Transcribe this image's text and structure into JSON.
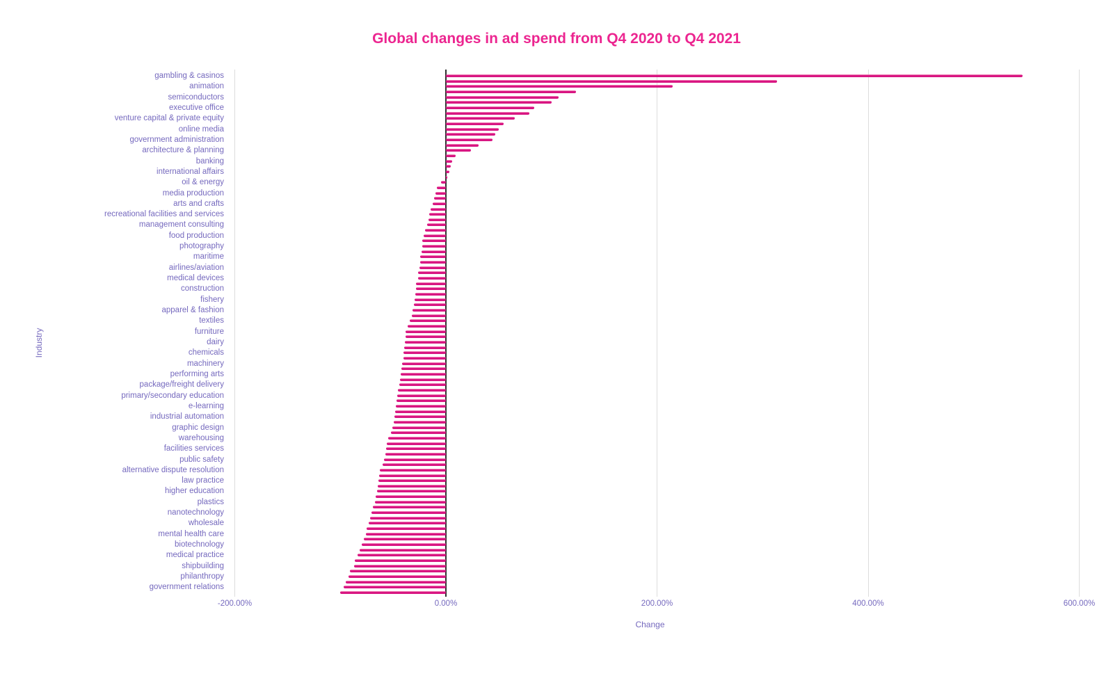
{
  "title": "Global changes in ad spend from Q4 2020 to Q4 2021",
  "colors": {
    "title": "#ec2590",
    "bar": "#d81682",
    "bar_highlight": "#f07ab2",
    "axis_text": "#7569be",
    "gridline": "#dcdcdc",
    "zero_line": "#2f2f2f"
  },
  "chart_data": {
    "type": "bar",
    "orientation": "horizontal",
    "title": "Global changes in ad spend from Q4 2020 to Q4 2021",
    "xlabel": "Change",
    "ylabel": "Industry",
    "xlim": [
      -200,
      632
    ],
    "grid": "vertical",
    "x_ticks": [
      {
        "label": "-200.00%",
        "value": -200
      },
      {
        "label": "0.00%",
        "value": 0
      },
      {
        "label": "200.00%",
        "value": 200
      },
      {
        "label": "400.00%",
        "value": 400
      },
      {
        "label": "600.00%",
        "value": 600
      }
    ],
    "note": "98 bars; every second category label is shown on the y axis; unlabeled bars have label ''",
    "bars": [
      {
        "label": "gambling & casinos",
        "value": 546
      },
      {
        "label": "",
        "value": 314
      },
      {
        "label": "animation",
        "value": 215
      },
      {
        "label": "",
        "value": 123
      },
      {
        "label": "semiconductors",
        "value": 107
      },
      {
        "label": "",
        "value": 100
      },
      {
        "label": "executive office",
        "value": 84
      },
      {
        "label": "",
        "value": 79
      },
      {
        "label": "venture capital & private equity",
        "value": 65
      },
      {
        "label": "",
        "value": 55
      },
      {
        "label": "online media",
        "value": 50
      },
      {
        "label": "",
        "value": 47
      },
      {
        "label": "government administration",
        "value": 44
      },
      {
        "label": "",
        "value": 31
      },
      {
        "label": "architecture & planning",
        "value": 24
      },
      {
        "label": "",
        "value": 9
      },
      {
        "label": "banking",
        "value": 6
      },
      {
        "label": "",
        "value": 4.5
      },
      {
        "label": "international affairs",
        "value": 3.3
      },
      {
        "label": "",
        "value": 1.5
      },
      {
        "label": "oil & energy",
        "value": -4.6
      },
      {
        "label": "",
        "value": -8.4
      },
      {
        "label": "media production",
        "value": -10
      },
      {
        "label": "",
        "value": -11.2
      },
      {
        "label": "arts and crafts",
        "value": -12.7
      },
      {
        "label": "",
        "value": -14.3
      },
      {
        "label": "recreational facilities and services",
        "value": -15.6
      },
      {
        "label": "",
        "value": -16.5
      },
      {
        "label": "management consulting",
        "value": -17.8
      },
      {
        "label": "",
        "value": -20
      },
      {
        "label": "food production",
        "value": -21
      },
      {
        "label": "",
        "value": -22.2
      },
      {
        "label": "photography",
        "value": -22.6
      },
      {
        "label": "",
        "value": -23.1
      },
      {
        "label": "maritime",
        "value": -24.2
      },
      {
        "label": "",
        "value": -24.6
      },
      {
        "label": "airlines/aviation",
        "value": -25.3
      },
      {
        "label": "",
        "value": -26.2
      },
      {
        "label": "medical devices",
        "value": -26.6
      },
      {
        "label": "",
        "value": -28.2
      },
      {
        "label": "construction",
        "value": -28.6
      },
      {
        "label": "",
        "value": -29
      },
      {
        "label": "fishery",
        "value": -29.7
      },
      {
        "label": "",
        "value": -30.6
      },
      {
        "label": "apparel & fashion",
        "value": -31.5
      },
      {
        "label": "",
        "value": -32.1
      },
      {
        "label": "textiles",
        "value": -34.3
      },
      {
        "label": "",
        "value": -36
      },
      {
        "label": "furniture",
        "value": -38
      },
      {
        "label": "",
        "value": -38.3
      },
      {
        "label": "dairy",
        "value": -38.7
      },
      {
        "label": "",
        "value": -39.4
      },
      {
        "label": "chemicals",
        "value": -40.3
      },
      {
        "label": "",
        "value": -40.5
      },
      {
        "label": "machinery",
        "value": -41.4
      },
      {
        "label": "",
        "value": -42
      },
      {
        "label": "performing arts",
        "value": -42.9
      },
      {
        "label": "",
        "value": -43.8
      },
      {
        "label": "package/freight delivery",
        "value": -44.4
      },
      {
        "label": "",
        "value": -45.3
      },
      {
        "label": "primary/secondary education",
        "value": -46.2
      },
      {
        "label": "",
        "value": -46.9
      },
      {
        "label": "e-learning",
        "value": -47.3
      },
      {
        "label": "",
        "value": -48
      },
      {
        "label": "industrial automation",
        "value": -48.6
      },
      {
        "label": "",
        "value": -49.5
      },
      {
        "label": "graphic design",
        "value": -50.6
      },
      {
        "label": "",
        "value": -52
      },
      {
        "label": "warehousing",
        "value": -55
      },
      {
        "label": "",
        "value": -56.1
      },
      {
        "label": "facilities services",
        "value": -56.8
      },
      {
        "label": "",
        "value": -57.2
      },
      {
        "label": "public safety",
        "value": -58.7
      },
      {
        "label": "",
        "value": -60.1
      },
      {
        "label": "alternative dispute resolution",
        "value": -62.7
      },
      {
        "label": "",
        "value": -63.4
      },
      {
        "label": "law practice",
        "value": -64
      },
      {
        "label": "",
        "value": -64.5
      },
      {
        "label": "higher education",
        "value": -65.3
      },
      {
        "label": "",
        "value": -66.7
      },
      {
        "label": "plastics",
        "value": -67.5
      },
      {
        "label": "",
        "value": -68.9
      },
      {
        "label": "nanotechnology",
        "value": -70.6
      },
      {
        "label": "",
        "value": -72
      },
      {
        "label": "wholesale",
        "value": -73
      },
      {
        "label": "",
        "value": -75
      },
      {
        "label": "mental health care",
        "value": -76
      },
      {
        "label": "",
        "value": -77.5
      },
      {
        "label": "biotechnology",
        "value": -80
      },
      {
        "label": "",
        "value": -82
      },
      {
        "label": "medical practice",
        "value": -84
      },
      {
        "label": "",
        "value": -86.5
      },
      {
        "label": "shipbuilding",
        "value": -87
      },
      {
        "label": "",
        "value": -91
      },
      {
        "label": "philanthropy",
        "value": -92.5
      },
      {
        "label": "",
        "value": -95
      },
      {
        "label": "government relations",
        "value": -97
      },
      {
        "label": "",
        "value": -100
      }
    ]
  }
}
